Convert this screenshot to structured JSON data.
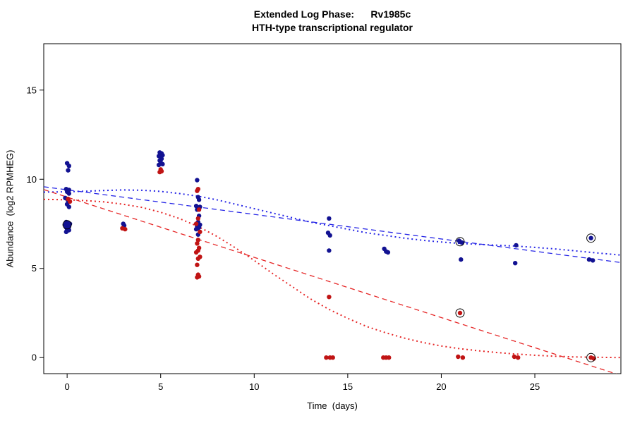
{
  "chart_data": {
    "type": "scatter",
    "title": "Extended Log Phase:      Rv1985c",
    "subtitle": "HTH-type transcriptional regulator",
    "xlabel": "Time  (days)",
    "ylabel": "Abundance  (log2 RPMHEG)",
    "xlim": [
      -1.25,
      29.6
    ],
    "ylim": [
      -0.9,
      17.6
    ],
    "xticks": [
      0,
      5,
      10,
      15,
      20,
      25
    ],
    "yticks": [
      0,
      5,
      10,
      15
    ],
    "grid": false,
    "legend": "none",
    "point_radius": 3.2,
    "series": [
      {
        "name": "condition-blue",
        "color": "#121292",
        "points": [
          [
            0.0,
            10.9
          ],
          [
            0.1,
            10.75
          ],
          [
            0.05,
            10.5
          ],
          [
            -0.05,
            9.45
          ],
          [
            0.1,
            9.4
          ],
          [
            0.0,
            9.3
          ],
          [
            0.1,
            9.2
          ],
          [
            -0.1,
            8.95
          ],
          [
            0.05,
            8.8
          ],
          [
            0.0,
            8.6
          ],
          [
            0.1,
            8.45
          ],
          [
            -0.05,
            7.6
          ],
          [
            0.05,
            7.55
          ],
          [
            0.15,
            7.5
          ],
          [
            -0.1,
            7.45
          ],
          [
            0.0,
            7.4
          ],
          [
            0.1,
            7.35
          ],
          [
            -0.05,
            7.3
          ],
          [
            0.05,
            7.25
          ],
          [
            0.0,
            7.2
          ],
          [
            0.1,
            7.15
          ],
          [
            0.0,
            7.1
          ],
          [
            -0.05,
            7.05
          ],
          [
            3.0,
            7.5
          ],
          [
            3.05,
            7.4
          ],
          [
            4.95,
            11.5
          ],
          [
            5.05,
            11.45
          ],
          [
            5.0,
            11.4
          ],
          [
            5.1,
            11.35
          ],
          [
            4.9,
            11.3
          ],
          [
            5.0,
            11.25
          ],
          [
            5.05,
            11.15
          ],
          [
            4.95,
            11.05
          ],
          [
            5.0,
            10.95
          ],
          [
            5.1,
            10.85
          ],
          [
            4.9,
            10.8
          ],
          [
            6.95,
            9.95
          ],
          [
            7.0,
            9.0
          ],
          [
            7.05,
            8.85
          ],
          [
            6.9,
            8.5
          ],
          [
            7.1,
            8.45
          ],
          [
            7.0,
            8.4
          ],
          [
            6.95,
            8.3
          ],
          [
            7.05,
            7.95
          ],
          [
            7.0,
            7.6
          ],
          [
            6.9,
            7.5
          ],
          [
            7.1,
            7.45
          ],
          [
            7.0,
            7.4
          ],
          [
            6.95,
            7.35
          ],
          [
            7.05,
            7.3
          ],
          [
            7.0,
            7.25
          ],
          [
            6.9,
            7.2
          ],
          [
            7.0,
            6.9
          ],
          [
            14.0,
            7.8
          ],
          [
            13.95,
            7.0
          ],
          [
            14.05,
            6.85
          ],
          [
            14.0,
            6.0
          ],
          [
            16.95,
            6.1
          ],
          [
            17.05,
            5.95
          ],
          [
            17.15,
            5.9
          ],
          [
            20.95,
            6.55
          ],
          [
            21.0,
            6.5
          ],
          [
            21.1,
            6.45
          ],
          [
            21.05,
            5.5
          ],
          [
            24.0,
            6.3
          ],
          [
            23.95,
            5.3
          ],
          [
            28.0,
            6.7
          ],
          [
            27.9,
            5.5
          ],
          [
            28.1,
            5.45
          ]
        ]
      },
      {
        "name": "condition-red",
        "color": "#C01414",
        "points": [
          [
            0.05,
            8.9
          ],
          [
            0.15,
            8.75
          ],
          [
            2.95,
            7.25
          ],
          [
            3.1,
            7.2
          ],
          [
            5.0,
            10.55
          ],
          [
            5.05,
            10.45
          ],
          [
            4.95,
            10.4
          ],
          [
            7.0,
            9.45
          ],
          [
            6.95,
            9.35
          ],
          [
            7.05,
            8.3
          ],
          [
            7.0,
            7.8
          ],
          [
            6.9,
            7.5
          ],
          [
            7.1,
            7.05
          ],
          [
            7.0,
            6.6
          ],
          [
            6.95,
            6.4
          ],
          [
            7.05,
            6.15
          ],
          [
            7.0,
            6.0
          ],
          [
            6.9,
            5.9
          ],
          [
            7.1,
            5.65
          ],
          [
            7.0,
            5.55
          ],
          [
            6.95,
            5.2
          ],
          [
            7.0,
            4.65
          ],
          [
            7.05,
            4.55
          ],
          [
            6.95,
            4.5
          ],
          [
            14.0,
            3.4
          ],
          [
            13.85,
            0.0
          ],
          [
            14.05,
            0.0
          ],
          [
            14.2,
            0.0
          ],
          [
            16.9,
            0.0
          ],
          [
            17.05,
            0.0
          ],
          [
            17.2,
            0.0
          ],
          [
            21.0,
            2.5
          ],
          [
            20.9,
            0.05
          ],
          [
            21.15,
            0.0
          ],
          [
            23.9,
            0.05
          ],
          [
            24.1,
            0.0
          ],
          [
            28.0,
            0.0
          ],
          [
            28.15,
            -0.05
          ]
        ]
      }
    ],
    "circled_points": [
      [
        0.0,
        7.45
      ],
      [
        21.0,
        6.5
      ],
      [
        28.0,
        6.7
      ],
      [
        21.0,
        2.5
      ],
      [
        28.0,
        0.0
      ]
    ],
    "circle_marker": {
      "color": "#000000",
      "radius": 6
    },
    "lines": [
      {
        "name": "blue-linear-fit-dashed",
        "color": "#2626E6",
        "dash": "7,5",
        "width": 1.3,
        "points": [
          [
            -1.25,
            9.58
          ],
          [
            29.6,
            5.33
          ]
        ]
      },
      {
        "name": "blue-smooth-fit-dotted",
        "color": "#2626E6",
        "dash": "2,4",
        "width": 2,
        "points": [
          [
            -1.25,
            9.28
          ],
          [
            0,
            9.3
          ],
          [
            1,
            9.33
          ],
          [
            2,
            9.37
          ],
          [
            3,
            9.4
          ],
          [
            4,
            9.38
          ],
          [
            5,
            9.32
          ],
          [
            6,
            9.2
          ],
          [
            7,
            9.05
          ],
          [
            8,
            8.85
          ],
          [
            9,
            8.6
          ],
          [
            10,
            8.35
          ],
          [
            11,
            8.1
          ],
          [
            12,
            7.85
          ],
          [
            13,
            7.6
          ],
          [
            14,
            7.4
          ],
          [
            15,
            7.2
          ],
          [
            16,
            7.0
          ],
          [
            17,
            6.85
          ],
          [
            18,
            6.7
          ],
          [
            19,
            6.58
          ],
          [
            20,
            6.48
          ],
          [
            21,
            6.4
          ],
          [
            22,
            6.35
          ],
          [
            23,
            6.3
          ],
          [
            24,
            6.25
          ],
          [
            25,
            6.18
          ],
          [
            26,
            6.1
          ],
          [
            27,
            6.0
          ],
          [
            28,
            5.9
          ],
          [
            29.6,
            5.75
          ]
        ]
      },
      {
        "name": "red-linear-fit-dashed",
        "color": "#E62626",
        "dash": "7,5",
        "width": 1.3,
        "points": [
          [
            -1.25,
            9.42
          ],
          [
            29.6,
            -1.0
          ]
        ]
      },
      {
        "name": "red-smooth-fit-dotted",
        "color": "#E62626",
        "dash": "2,4",
        "width": 2,
        "points": [
          [
            -1.25,
            8.87
          ],
          [
            0,
            8.85
          ],
          [
            1,
            8.8
          ],
          [
            2,
            8.73
          ],
          [
            3,
            8.6
          ],
          [
            4,
            8.42
          ],
          [
            5,
            8.15
          ],
          [
            6,
            7.8
          ],
          [
            7,
            7.35
          ],
          [
            8,
            6.8
          ],
          [
            9,
            6.15
          ],
          [
            10,
            5.45
          ],
          [
            11,
            4.7
          ],
          [
            12,
            4.0
          ],
          [
            13,
            3.3
          ],
          [
            14,
            2.7
          ],
          [
            15,
            2.2
          ],
          [
            16,
            1.75
          ],
          [
            17,
            1.4
          ],
          [
            18,
            1.1
          ],
          [
            19,
            0.85
          ],
          [
            20,
            0.65
          ],
          [
            21,
            0.5
          ],
          [
            22,
            0.38
          ],
          [
            23,
            0.28
          ],
          [
            24,
            0.2
          ],
          [
            25,
            0.13
          ],
          [
            26,
            0.08
          ],
          [
            27,
            0.04
          ],
          [
            28,
            0.02
          ],
          [
            29.6,
            0.0
          ]
        ]
      }
    ]
  }
}
